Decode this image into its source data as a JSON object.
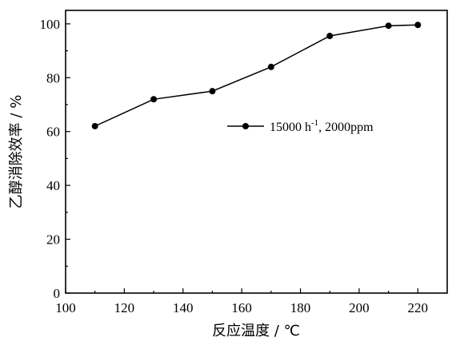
{
  "chart_data": {
    "type": "line",
    "xlabel": "反应温度 / ℃",
    "ylabel": "乙醇消除效率 / %",
    "xlim": [
      100,
      230
    ],
    "ylim": [
      0,
      105
    ],
    "xticks": [
      100,
      120,
      140,
      160,
      180,
      200,
      220
    ],
    "yticks": [
      0,
      20,
      40,
      60,
      80,
      100
    ],
    "grid": false,
    "legend_position": "middle-right",
    "series": [
      {
        "name_main": "15000 h",
        "name_sup": "-1",
        "name_rest": ", 2000ppm",
        "marker": "circle",
        "color": "#000000",
        "x": [
          110,
          130,
          150,
          170,
          190,
          210,
          220
        ],
        "y": [
          62,
          72,
          75,
          84,
          95.5,
          99.3,
          99.6
        ]
      }
    ]
  }
}
